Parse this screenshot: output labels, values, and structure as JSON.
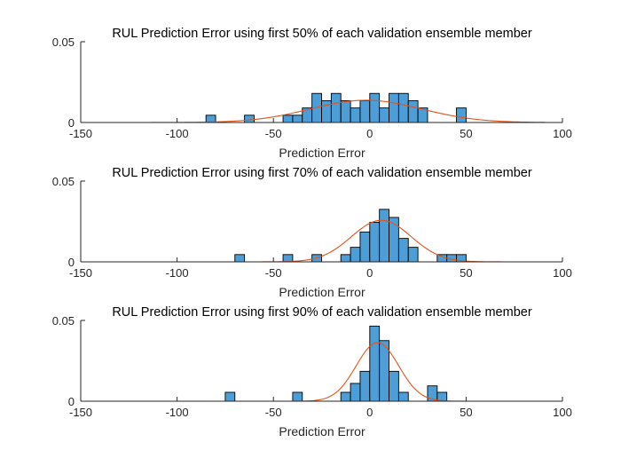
{
  "chart_data": [
    {
      "type": "histogram",
      "title": "RUL Prediction Error using first 50% of each validation ensemble member",
      "xlabel": "Prediction Error",
      "xlim": [
        -150,
        100
      ],
      "ylim": [
        0,
        0.05
      ],
      "xticks": [
        -150,
        -100,
        -50,
        0,
        50,
        100
      ],
      "xtick_labels": [
        "-150",
        "-100",
        "-50",
        "0",
        "50",
        "100"
      ],
      "yticks": [
        0,
        0.05
      ],
      "ytick_labels": [
        "0",
        "0.05"
      ],
      "bin_width": 5,
      "bins": [
        {
          "x0": -85,
          "value": 0.0045
        },
        {
          "x0": -65,
          "value": 0.0045
        },
        {
          "x0": -45,
          "value": 0.0045
        },
        {
          "x0": -40,
          "value": 0.0045
        },
        {
          "x0": -35,
          "value": 0.009
        },
        {
          "x0": -30,
          "value": 0.018
        },
        {
          "x0": -25,
          "value": 0.0135
        },
        {
          "x0": -20,
          "value": 0.018
        },
        {
          "x0": -15,
          "value": 0.0135
        },
        {
          "x0": -10,
          "value": 0.009
        },
        {
          "x0": -5,
          "value": 0.0135
        },
        {
          "x0": 0,
          "value": 0.018
        },
        {
          "x0": 5,
          "value": 0.009
        },
        {
          "x0": 10,
          "value": 0.018
        },
        {
          "x0": 15,
          "value": 0.018
        },
        {
          "x0": 20,
          "value": 0.0135
        },
        {
          "x0": 25,
          "value": 0.009
        },
        {
          "x0": 45,
          "value": 0.009
        }
      ],
      "fit": {
        "type": "normal",
        "mean": -2,
        "std": 29,
        "xrange": [
          -122,
          91
        ]
      }
    },
    {
      "type": "histogram",
      "title": "RUL Prediction Error using first 70% of each validation ensemble member",
      "xlabel": "Prediction Error",
      "xlim": [
        -150,
        100
      ],
      "ylim": [
        0,
        0.05
      ],
      "xticks": [
        -150,
        -100,
        -50,
        0,
        50,
        100
      ],
      "xtick_labels": [
        "-150",
        "-100",
        "-50",
        "0",
        "50",
        "100"
      ],
      "yticks": [
        0,
        0.05
      ],
      "ytick_labels": [
        "0",
        "0.05"
      ],
      "bin_width": 5,
      "bins": [
        {
          "x0": -70,
          "value": 0.0045
        },
        {
          "x0": -45,
          "value": 0.0045
        },
        {
          "x0": -30,
          "value": 0.0045
        },
        {
          "x0": -15,
          "value": 0.0045
        },
        {
          "x0": -10,
          "value": 0.009
        },
        {
          "x0": -5,
          "value": 0.0185
        },
        {
          "x0": 0,
          "value": 0.0245
        },
        {
          "x0": 5,
          "value": 0.0325
        },
        {
          "x0": 10,
          "value": 0.0275
        },
        {
          "x0": 15,
          "value": 0.0145
        },
        {
          "x0": 20,
          "value": 0.009
        },
        {
          "x0": 35,
          "value": 0.0045
        },
        {
          "x0": 40,
          "value": 0.0045
        },
        {
          "x0": 45,
          "value": 0.0045
        }
      ],
      "fit": {
        "type": "normal",
        "mean": 6,
        "std": 15.5,
        "xrange": [
          -84,
          68
        ]
      }
    },
    {
      "type": "histogram",
      "title": "RUL Prediction Error using first 90% of each validation ensemble member",
      "xlabel": "Prediction Error",
      "xlim": [
        -150,
        100
      ],
      "ylim": [
        0,
        0.05
      ],
      "xticks": [
        -150,
        -100,
        -50,
        0,
        50,
        100
      ],
      "xtick_labels": [
        "-150",
        "-100",
        "-50",
        "0",
        "50",
        "100"
      ],
      "yticks": [
        0,
        0.05
      ],
      "ytick_labels": [
        "0",
        "0.05"
      ],
      "bin_width": 5,
      "bins": [
        {
          "x0": -75,
          "value": 0.0055
        },
        {
          "x0": -40,
          "value": 0.0055
        },
        {
          "x0": -15,
          "value": 0.0055
        },
        {
          "x0": -10,
          "value": 0.011
        },
        {
          "x0": -5,
          "value": 0.0185
        },
        {
          "x0": 0,
          "value": 0.0465
        },
        {
          "x0": 5,
          "value": 0.0375
        },
        {
          "x0": 10,
          "value": 0.0185
        },
        {
          "x0": 15,
          "value": 0.0055
        },
        {
          "x0": 30,
          "value": 0.0095
        },
        {
          "x0": 35,
          "value": 0.0055
        }
      ],
      "fit": {
        "type": "normal",
        "mean": 4,
        "std": 11,
        "xrange": [
          -85,
          55
        ]
      }
    }
  ]
}
